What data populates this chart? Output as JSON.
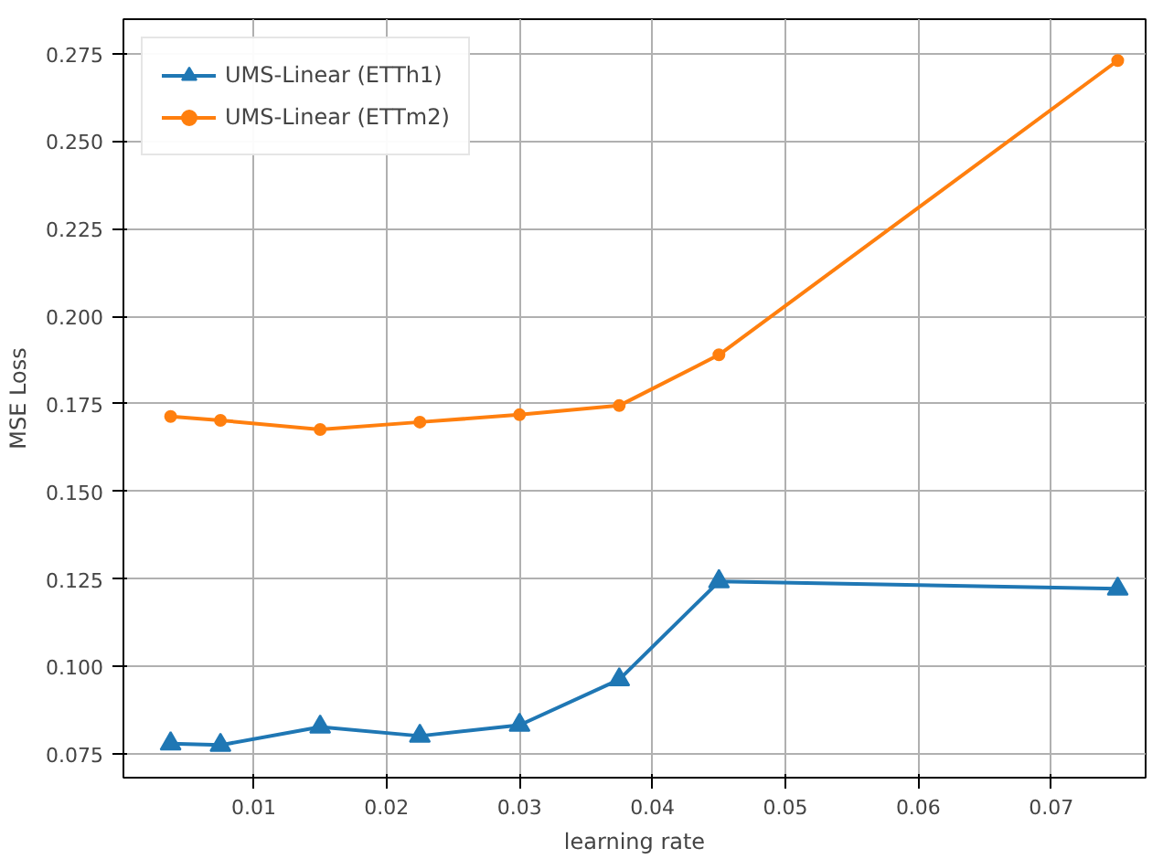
{
  "chart_data": {
    "type": "line",
    "xlabel": "learning rate",
    "ylabel": "MSE Loss",
    "x": [
      0.00375,
      0.0075,
      0.015,
      0.0225,
      0.03,
      0.0375,
      0.045,
      0.075
    ],
    "series": [
      {
        "name": "UMS-Linear (ETTh1)",
        "color": "#1f77b4",
        "marker": "triangle",
        "values": [
          0.078,
          0.0776,
          0.0828,
          0.0802,
          0.0833,
          0.0963,
          0.1243,
          0.1222
        ]
      },
      {
        "name": "UMS-Linear (ETTm2)",
        "color": "#ff7f0e",
        "marker": "circle",
        "values": [
          0.1714,
          0.1703,
          0.1677,
          0.1698,
          0.1719,
          0.1745,
          0.189,
          0.273
        ]
      }
    ],
    "xlim": [
      0.0002,
      0.0771
    ],
    "ylim": [
      0.0683,
      0.2848
    ],
    "xticks": [
      0.01,
      0.02,
      0.03,
      0.04,
      0.05,
      0.06,
      0.07
    ],
    "yticks": [
      0.075,
      {
        "value": 0.1,
        "label": "0.100"
      },
      0.125,
      {
        "value": 0.15,
        "label": "0.150"
      },
      0.175,
      {
        "value": 0.2,
        "label": "0.200"
      },
      0.225,
      {
        "value": 0.25,
        "label": "0.250"
      },
      0.275
    ],
    "grid": true,
    "legend": "top left"
  }
}
